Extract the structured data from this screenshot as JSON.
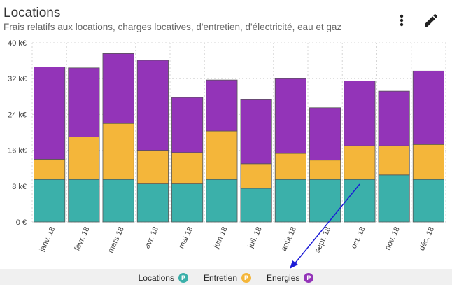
{
  "header": {
    "title": "Locations",
    "subtitle": "Frais relatifs aux locations, charges locatives, d'entretien, d'électricité, eau et gaz",
    "more_icon": "more-vert-icon",
    "edit_icon": "pencil-icon"
  },
  "colors": {
    "Locations": "#3bb0aa",
    "Entretien": "#f4b63a",
    "Energies": "#9334b8",
    "arrow": "#1a1ad6"
  },
  "legend": [
    {
      "label": "Locations",
      "badge": "P",
      "color": "#3bb0aa"
    },
    {
      "label": "Entretien",
      "badge": "P",
      "color": "#f4b63a"
    },
    {
      "label": "Energies",
      "badge": "P",
      "color": "#9334b8"
    }
  ],
  "chart_data": {
    "type": "bar",
    "stacked": true,
    "categories": [
      "janv. 18",
      "févr. 18",
      "mars 18",
      "avr. 18",
      "mai 18",
      "juin 18",
      "juil. 18",
      "août 18",
      "sept. 18",
      "oct. 18",
      "nov. 18",
      "déc. 18"
    ],
    "series": [
      {
        "name": "Locations",
        "values": [
          9.5,
          9.5,
          9.5,
          8.5,
          8.5,
          9.5,
          7.5,
          9.5,
          9.5,
          9.5,
          10.5,
          9.5
        ]
      },
      {
        "name": "Entretien",
        "values": [
          4.5,
          9.5,
          12.5,
          7.5,
          7.0,
          10.8,
          5.5,
          5.8,
          4.3,
          7.5,
          6.5,
          7.8
        ]
      },
      {
        "name": "Energies",
        "values": [
          20.6,
          15.4,
          15.6,
          20.1,
          12.3,
          11.4,
          14.3,
          16.7,
          11.7,
          14.5,
          12.2,
          16.4
        ]
      }
    ],
    "ylim": [
      0,
      40
    ],
    "yticks": [
      "0 €",
      "8 k€",
      "16 k€",
      "24 k€",
      "32 k€",
      "40 k€"
    ],
    "grid": true,
    "legend_position": "bottom"
  }
}
